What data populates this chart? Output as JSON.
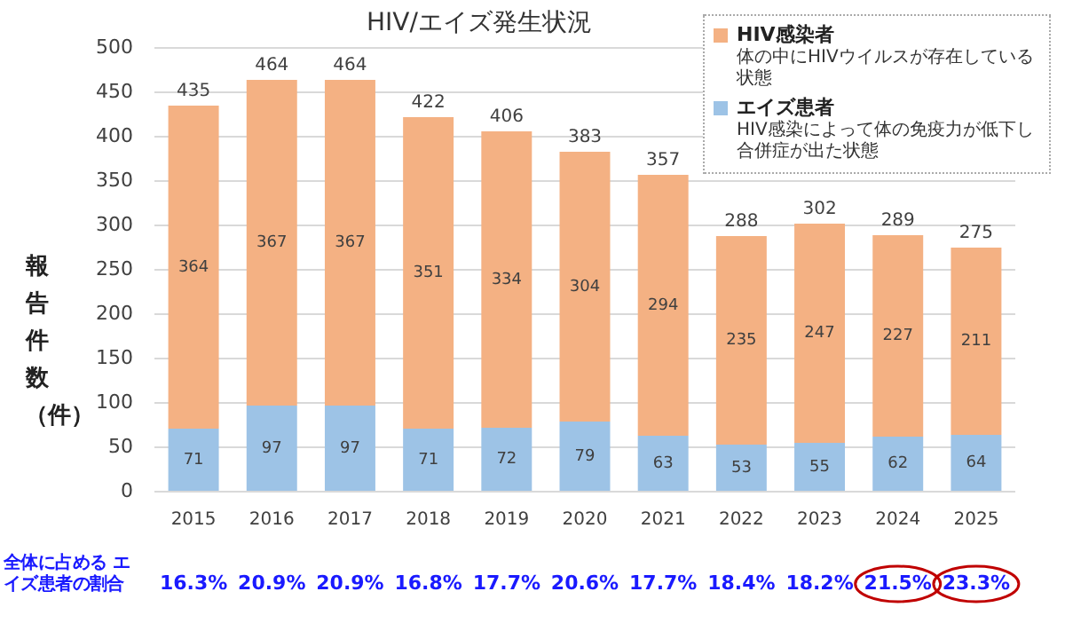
{
  "chart_data": {
    "type": "bar",
    "title": "HIV/エイズ発生状況",
    "ylabel": "報告件数（件）",
    "categories": [
      "2015",
      "2016",
      "2017",
      "2018",
      "2019",
      "2020",
      "2021",
      "2022",
      "2023",
      "2024",
      "2025"
    ],
    "series": [
      {
        "name": "エイズ患者",
        "color": "#9dc3e6",
        "values": [
          71,
          97,
          97,
          71,
          72,
          79,
          63,
          53,
          55,
          62,
          64
        ]
      },
      {
        "name": "HIV感染者",
        "color": "#f4b183",
        "values": [
          364,
          367,
          367,
          351,
          334,
          304,
          294,
          235,
          247,
          227,
          211
        ]
      }
    ],
    "stacked": true,
    "data_labels": true,
    "totals": [
      "435",
      "464",
      "464",
      "422",
      "406",
      "383",
      "357",
      "288",
      "302",
      "289",
      "275"
    ],
    "ylim": [
      0,
      500
    ],
    "yticks": [
      0,
      50,
      100,
      150,
      200,
      250,
      300,
      350,
      400,
      450,
      500
    ],
    "grid": "y",
    "legend": "top right",
    "annotations": [
      "HIV感染によって体の免疫力が低下し合併症が出た状態",
      "体の中にHIVウイルスが存在している状態",
      "全体に占める エイズ患者の割合",
      "16.3%",
      "20.9%",
      "20.9%",
      "16.8%",
      "17.7%",
      "20.6%",
      "17.7%",
      "18.4%",
      "18.2%",
      "21.5%",
      "23.3%"
    ]
  }
}
